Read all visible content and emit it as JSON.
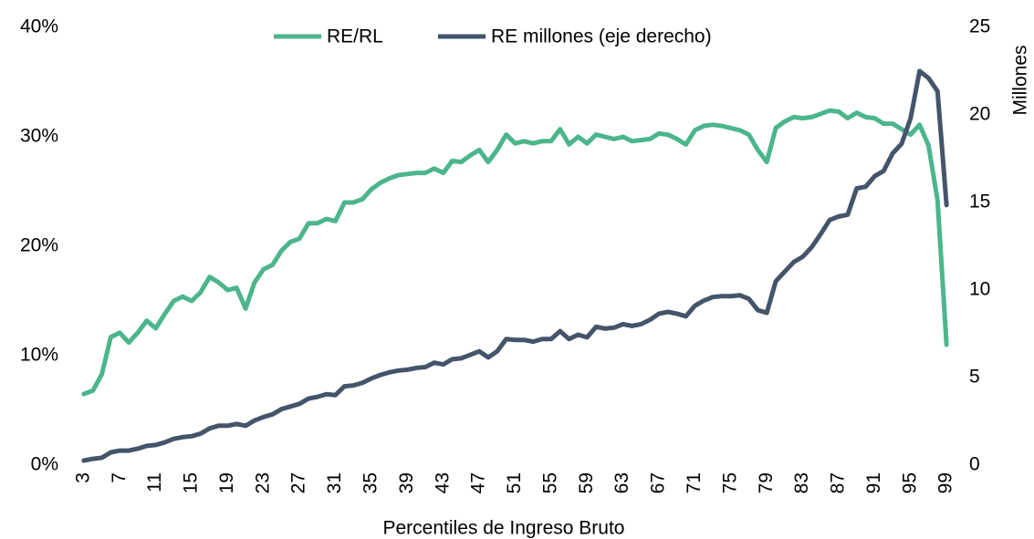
{
  "chart_data": {
    "type": "line",
    "x_label": "Percentiles de Ingreso Bruto",
    "y2_label": "Millones",
    "x": [
      3,
      4,
      5,
      6,
      7,
      8,
      9,
      10,
      11,
      12,
      13,
      14,
      15,
      16,
      17,
      18,
      19,
      20,
      21,
      22,
      23,
      24,
      25,
      26,
      27,
      28,
      29,
      30,
      31,
      32,
      33,
      34,
      35,
      36,
      37,
      38,
      39,
      40,
      41,
      42,
      43,
      44,
      45,
      46,
      47,
      48,
      49,
      50,
      51,
      52,
      53,
      54,
      55,
      56,
      57,
      58,
      59,
      60,
      61,
      62,
      63,
      64,
      65,
      66,
      67,
      68,
      69,
      70,
      71,
      72,
      73,
      74,
      75,
      76,
      77,
      78,
      79,
      80,
      81,
      82,
      83,
      84,
      85,
      86,
      87,
      88,
      89,
      90,
      91,
      92,
      93,
      94,
      95,
      96,
      97,
      98,
      99
    ],
    "xlim": [
      2,
      100
    ],
    "xticks": [
      3,
      7,
      11,
      15,
      19,
      23,
      27,
      31,
      35,
      39,
      43,
      47,
      51,
      55,
      59,
      63,
      67,
      71,
      75,
      79,
      83,
      87,
      91,
      95,
      99
    ],
    "ylim": [
      0,
      40
    ],
    "yticks": [
      {
        "value": 0,
        "label": "0%"
      },
      {
        "value": 10,
        "label": "10%"
      },
      {
        "value": 20,
        "label": "20%"
      },
      {
        "value": 30,
        "label": "30%"
      },
      {
        "value": 40,
        "label": "40%"
      }
    ],
    "y2lim": [
      0,
      25
    ],
    "y2ticks": [
      0,
      5,
      10,
      15,
      20,
      25
    ],
    "legend": "top",
    "series": [
      {
        "name": "RE/RL",
        "color": "#4bb58c",
        "values": [
          6.5,
          6.8,
          8.3,
          11.7,
          12.1,
          11.2,
          12.1,
          13.2,
          12.5,
          13.8,
          15.0,
          15.4,
          15.0,
          15.8,
          17.2,
          16.7,
          16.0,
          16.2,
          14.3,
          16.7,
          17.9,
          18.3,
          19.6,
          20.4,
          20.7,
          22.1,
          22.1,
          22.5,
          22.3,
          24.0,
          24.0,
          24.3,
          25.2,
          25.8,
          26.2,
          26.5,
          26.6,
          26.7,
          26.7,
          27.1,
          26.7,
          27.8,
          27.7,
          28.3,
          28.8,
          27.7,
          28.8,
          30.2,
          29.4,
          29.6,
          29.4,
          29.6,
          29.6,
          30.7,
          29.3,
          30.0,
          29.4,
          30.2,
          30.0,
          29.8,
          30.0,
          29.6,
          29.7,
          29.8,
          30.3,
          30.2,
          29.8,
          29.3,
          30.6,
          31.0,
          31.1,
          31.0,
          30.8,
          30.6,
          30.2,
          28.8,
          27.7,
          30.8,
          31.4,
          31.8,
          31.7,
          31.8,
          32.1,
          32.4,
          32.3,
          31.7,
          32.2,
          31.8,
          31.7,
          31.2,
          31.2,
          30.7,
          30.2,
          31.1,
          29.2,
          24.2,
          11.0
        ]
      },
      {
        "name": "RE millones (eje derecho)",
        "color": "#44546a",
        "axis": "y2",
        "values": [
          0.26,
          0.36,
          0.42,
          0.73,
          0.83,
          0.83,
          0.94,
          1.1,
          1.15,
          1.3,
          1.5,
          1.6,
          1.65,
          1.8,
          2.1,
          2.25,
          2.25,
          2.35,
          2.25,
          2.55,
          2.75,
          2.9,
          3.2,
          3.35,
          3.5,
          3.8,
          3.9,
          4.05,
          4.0,
          4.5,
          4.55,
          4.7,
          4.95,
          5.15,
          5.3,
          5.4,
          5.45,
          5.55,
          5.6,
          5.85,
          5.75,
          6.05,
          6.1,
          6.3,
          6.5,
          6.15,
          6.5,
          7.2,
          7.15,
          7.15,
          7.05,
          7.2,
          7.2,
          7.65,
          7.2,
          7.45,
          7.3,
          7.9,
          7.8,
          7.85,
          8.05,
          7.95,
          8.05,
          8.3,
          8.65,
          8.75,
          8.65,
          8.5,
          9.1,
          9.4,
          9.6,
          9.65,
          9.65,
          9.7,
          9.5,
          8.85,
          8.7,
          10.5,
          11.05,
          11.6,
          11.9,
          12.45,
          13.2,
          14.0,
          14.2,
          14.3,
          15.8,
          15.9,
          16.5,
          16.8,
          17.8,
          18.35,
          19.8,
          22.5,
          22.1,
          21.35,
          14.85
        ]
      }
    ]
  }
}
